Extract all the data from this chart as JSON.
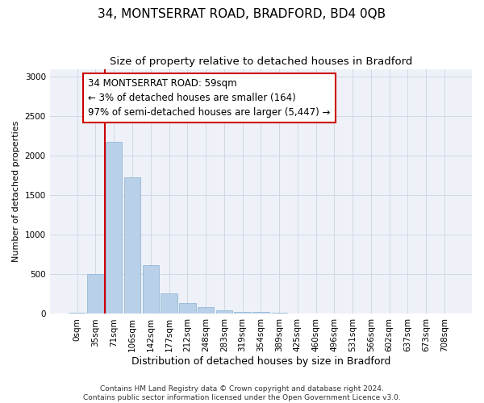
{
  "title": "34, MONTSERRAT ROAD, BRADFORD, BD4 0QB",
  "subtitle": "Size of property relative to detached houses in Bradford",
  "xlabel": "Distribution of detached houses by size in Bradford",
  "ylabel": "Number of detached properties",
  "bar_color": "#b8d0e8",
  "bar_edge_color": "#8ab0d0",
  "grid_color": "#d0d8e8",
  "background_color": "#eef2f8",
  "vline_color": "#cc0000",
  "annotation_text": "34 MONTSERRAT ROAD: 59sqm\n← 3% of detached houses are smaller (164)\n97% of semi-detached houses are larger (5,447) →",
  "annotation_box_color": "#ffffff",
  "annotation_box_edge_color": "#cc0000",
  "categories": [
    "0sqm",
    "35sqm",
    "71sqm",
    "106sqm",
    "142sqm",
    "177sqm",
    "212sqm",
    "248sqm",
    "283sqm",
    "319sqm",
    "354sqm",
    "389sqm",
    "425sqm",
    "460sqm",
    "496sqm",
    "531sqm",
    "566sqm",
    "602sqm",
    "637sqm",
    "673sqm",
    "708sqm"
  ],
  "values": [
    10,
    500,
    2180,
    1730,
    620,
    260,
    140,
    90,
    45,
    30,
    20,
    10,
    5,
    3,
    2,
    2,
    1,
    1,
    0,
    0,
    0
  ],
  "ylim": [
    0,
    3100
  ],
  "yticks": [
    0,
    500,
    1000,
    1500,
    2000,
    2500,
    3000
  ],
  "footnote": "Contains HM Land Registry data © Crown copyright and database right 2024.\nContains public sector information licensed under the Open Government Licence v3.0.",
  "title_fontsize": 11,
  "subtitle_fontsize": 9.5,
  "xlabel_fontsize": 9,
  "ylabel_fontsize": 8,
  "tick_fontsize": 7.5,
  "annotation_fontsize": 8.5,
  "footnote_fontsize": 6.5
}
